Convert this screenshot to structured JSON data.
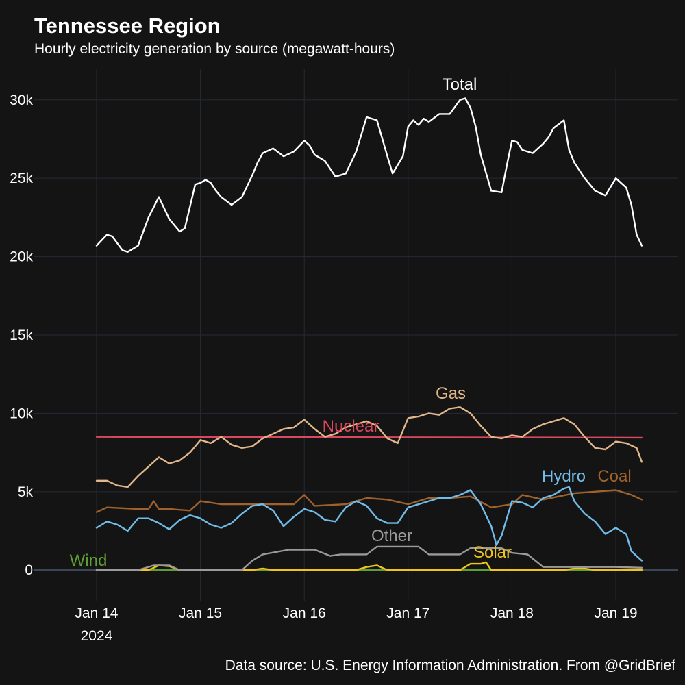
{
  "chart_data": {
    "type": "line",
    "title": "Tennessee Region",
    "subtitle": "Hourly electricity generation by source (megawatt-hours)",
    "source": "Data source: U.S. Energy Information Administration. From @GridBrief",
    "xlabel": "",
    "ylabel": "",
    "ylim": [
      -2000,
      32000
    ],
    "y_ticks": [
      0,
      5000,
      10000,
      15000,
      20000,
      25000,
      30000
    ],
    "y_tick_labels": [
      "0",
      "5k",
      "10k",
      "15k",
      "20k",
      "25k",
      "30k"
    ],
    "x_range_days": [
      -0.6,
      5.6
    ],
    "x_ticks": [
      0,
      1,
      2,
      3,
      4,
      5
    ],
    "x_tick_labels": [
      "Jan 14",
      "Jan 15",
      "Jan 16",
      "Jan 17",
      "Jan 18",
      "Jan 19"
    ],
    "x_year_label": "2024",
    "grid": true,
    "x_unit": "days since Jan 14 00:00",
    "series": [
      {
        "name": "Total",
        "color": "#ffffff",
        "x": [
          0,
          0.1,
          0.15,
          0.25,
          0.3,
          0.4,
          0.5,
          0.6,
          0.7,
          0.8,
          0.85,
          0.95,
          1.0,
          1.05,
          1.1,
          1.15,
          1.2,
          1.3,
          1.4,
          1.45,
          1.5,
          1.55,
          1.6,
          1.7,
          1.8,
          1.9,
          2.0,
          2.05,
          2.1,
          2.2,
          2.3,
          2.4,
          2.5,
          2.6,
          2.7,
          2.8,
          2.85,
          2.95,
          3.0,
          3.05,
          3.1,
          3.15,
          3.2,
          3.3,
          3.4,
          3.5,
          3.55,
          3.6,
          3.65,
          3.7,
          3.8,
          3.9,
          3.95,
          4.0,
          4.05,
          4.1,
          4.2,
          4.3,
          4.35,
          4.4,
          4.5,
          4.55,
          4.6,
          4.7,
          4.8,
          4.9,
          5.0,
          5.1,
          5.15,
          5.2,
          5.25
        ],
        "values": [
          20700,
          21400,
          21300,
          20400,
          20300,
          20700,
          22500,
          23800,
          22400,
          21600,
          21800,
          24600,
          24700,
          24900,
          24700,
          24200,
          23800,
          23300,
          23800,
          24500,
          25200,
          26000,
          26600,
          26900,
          26400,
          26700,
          27400,
          27100,
          26500,
          26100,
          25100,
          25300,
          26700,
          28900,
          28700,
          26400,
          25300,
          26400,
          28300,
          28700,
          28400,
          28800,
          28600,
          29100,
          29100,
          30000,
          30100,
          29500,
          28300,
          26500,
          24200,
          24100,
          25800,
          27400,
          27300,
          26800,
          26600,
          27200,
          27600,
          28200,
          28700,
          26800,
          26000,
          25000,
          24200,
          23900,
          25000,
          24400,
          23300,
          21400,
          20700
        ]
      },
      {
        "name": "Gas",
        "color": "#e3b78c",
        "x": [
          0,
          0.1,
          0.2,
          0.3,
          0.4,
          0.5,
          0.6,
          0.7,
          0.8,
          0.9,
          1.0,
          1.1,
          1.2,
          1.3,
          1.4,
          1.5,
          1.6,
          1.7,
          1.8,
          1.9,
          2.0,
          2.1,
          2.2,
          2.3,
          2.4,
          2.5,
          2.6,
          2.7,
          2.8,
          2.9,
          3.0,
          3.1,
          3.2,
          3.3,
          3.4,
          3.5,
          3.6,
          3.7,
          3.8,
          3.9,
          4.0,
          4.1,
          4.2,
          4.3,
          4.4,
          4.5,
          4.6,
          4.7,
          4.8,
          4.9,
          5.0,
          5.1,
          5.2,
          5.25
        ],
        "values": [
          5700,
          5700,
          5400,
          5300,
          6000,
          6600,
          7200,
          6800,
          7000,
          7500,
          8300,
          8100,
          8500,
          8000,
          7800,
          7900,
          8400,
          8700,
          9000,
          9100,
          9600,
          9000,
          8500,
          8700,
          9100,
          9300,
          9500,
          9200,
          8400,
          8100,
          9700,
          9800,
          10000,
          9900,
          10300,
          10400,
          10000,
          9200,
          8500,
          8400,
          8600,
          8500,
          9000,
          9300,
          9500,
          9700,
          9300,
          8500,
          7800,
          7700,
          8200,
          8100,
          7800,
          6900
        ]
      },
      {
        "name": "Nuclear",
        "color": "#d9485f",
        "x": [
          0,
          5.25
        ],
        "values": [
          8500,
          8450
        ]
      },
      {
        "name": "Coal",
        "color": "#a0612b",
        "x": [
          0,
          0.1,
          0.4,
          0.5,
          0.55,
          0.6,
          0.7,
          0.9,
          1.0,
          1.2,
          1.5,
          1.9,
          2.0,
          2.1,
          2.4,
          2.6,
          2.8,
          3.0,
          3.2,
          3.4,
          3.6,
          3.8,
          4.0,
          4.1,
          4.3,
          4.6,
          4.8,
          5.0,
          5.15,
          5.25
        ],
        "values": [
          3700,
          4000,
          3900,
          3900,
          4400,
          3900,
          3900,
          3800,
          4400,
          4200,
          4200,
          4200,
          4800,
          4100,
          4200,
          4600,
          4500,
          4200,
          4600,
          4600,
          4700,
          4000,
          4200,
          4800,
          4500,
          4900,
          5000,
          5100,
          4800,
          4500
        ]
      },
      {
        "name": "Hydro",
        "color": "#72bce9",
        "x": [
          0,
          0.1,
          0.2,
          0.3,
          0.4,
          0.5,
          0.6,
          0.7,
          0.8,
          0.9,
          1.0,
          1.1,
          1.2,
          1.3,
          1.4,
          1.5,
          1.6,
          1.7,
          1.8,
          1.9,
          2.0,
          2.1,
          2.2,
          2.3,
          2.4,
          2.5,
          2.6,
          2.7,
          2.8,
          2.9,
          3.0,
          3.1,
          3.2,
          3.3,
          3.4,
          3.5,
          3.6,
          3.7,
          3.8,
          3.85,
          3.9,
          4.0,
          4.1,
          4.2,
          4.3,
          4.4,
          4.5,
          4.55,
          4.6,
          4.7,
          4.8,
          4.9,
          5.0,
          5.1,
          5.15,
          5.25
        ],
        "values": [
          2700,
          3100,
          2900,
          2500,
          3300,
          3300,
          3000,
          2600,
          3200,
          3500,
          3300,
          2900,
          2700,
          3000,
          3600,
          4100,
          4200,
          3800,
          2800,
          3400,
          3900,
          3700,
          3200,
          3100,
          4000,
          4400,
          4100,
          3300,
          3000,
          3000,
          4000,
          4200,
          4400,
          4600,
          4600,
          4800,
          5100,
          4200,
          2800,
          1600,
          2200,
          4400,
          4300,
          4000,
          4600,
          4800,
          5200,
          5300,
          4400,
          3600,
          3100,
          2300,
          2700,
          2300,
          1200,
          600
        ]
      },
      {
        "name": "Other",
        "color": "#9a9a9a",
        "x": [
          0,
          0.4,
          0.55,
          0.7,
          0.8,
          1.0,
          1.4,
          1.5,
          1.6,
          1.85,
          2.1,
          2.25,
          2.35,
          2.6,
          2.7,
          3.1,
          3.2,
          3.5,
          3.6,
          3.9,
          4.0,
          4.15,
          4.3,
          4.8,
          5.0,
          5.25
        ],
        "values": [
          0,
          0,
          300,
          300,
          0,
          0,
          0,
          600,
          1000,
          1300,
          1300,
          900,
          1000,
          1000,
          1500,
          1500,
          1000,
          1000,
          1400,
          1400,
          1100,
          1000,
          200,
          200,
          200,
          150
        ]
      },
      {
        "name": "Solar",
        "color": "#f0c419",
        "x": [
          0,
          0.5,
          0.6,
          0.7,
          0.8,
          1.5,
          1.6,
          1.7,
          2.5,
          2.6,
          2.7,
          2.8,
          3.5,
          3.6,
          3.7,
          3.75,
          3.8,
          4.5,
          4.6,
          4.7,
          4.8,
          5.25
        ],
        "values": [
          0,
          0,
          300,
          250,
          0,
          0,
          100,
          0,
          0,
          200,
          300,
          0,
          0,
          400,
          400,
          500,
          0,
          0,
          100,
          100,
          0,
          0
        ]
      },
      {
        "name": "Wind",
        "color": "#5f9e33",
        "x": [
          0,
          5.25
        ],
        "values": [
          20,
          20
        ]
      }
    ],
    "series_labels": [
      {
        "name": "Total",
        "text": "Total"
      },
      {
        "name": "Gas",
        "text": "Gas"
      },
      {
        "name": "Nuclear",
        "text": "Nuclear"
      },
      {
        "name": "Hydro",
        "text": "Hydro"
      },
      {
        "name": "Coal",
        "text": "Coal"
      },
      {
        "name": "Other",
        "text": "Other"
      },
      {
        "name": "Solar",
        "text": "Solar"
      },
      {
        "name": "Wind",
        "text": "Wind"
      }
    ],
    "colors": {
      "background": "#141414",
      "grid": "#262a33",
      "zero_line": "#3b4654",
      "text": "#ffffff"
    }
  }
}
